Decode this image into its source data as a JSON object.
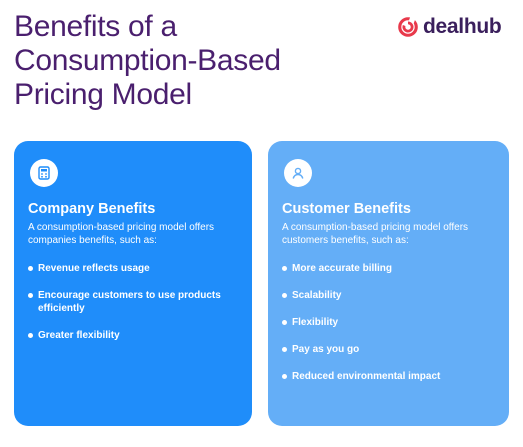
{
  "title": "Benefits of a Consumption-Based Pricing Model",
  "logo": {
    "text": "dealhub",
    "color": "#e8394b"
  },
  "cards": {
    "company": {
      "icon": "calculator-icon",
      "heading": "Company Benefits",
      "description": "A consumption-based pricing model offers companies benefits, such as:",
      "benefits": [
        "Revenue reflects usage",
        "Encourage customers to use products efficiently",
        "Greater flexibility"
      ],
      "color": "#1f8dfa"
    },
    "customer": {
      "icon": "user-icon",
      "heading": "Customer Benefits",
      "description": "A consumption-based pricing model offers customers benefits, such as:",
      "benefits": [
        "More accurate billing",
        "Scalability",
        "Flexibility",
        "Pay as you go",
        "Reduced environmental impact"
      ],
      "color": "#64aef7"
    }
  }
}
